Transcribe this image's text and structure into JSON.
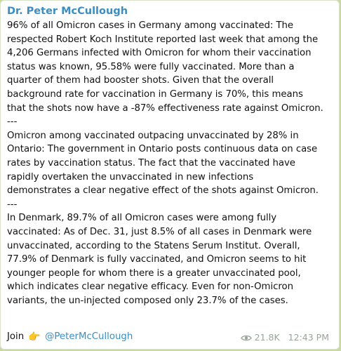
{
  "message": {
    "author": "Dr. Peter McCullough",
    "paragraphs": [
      "96% of all Omicron cases in Germany among vaccinated: The\nrespected Robert Koch Institute reported last week that among the\n4,206 Germans infected with Omicron for whom their vaccination\nstatus was known, 95.58% were fully vaccinated. More than a\nquarter of them had booster shots. Given that the overall\nbackground rate for vaccination in Germany is 70%, this means\nthat the shots now have a -87% effectiveness rate against Omicron.",
      "Omicron among vaccinated outpacing unvaccinated by 28% in\nOntario: The government in Ontario posts continuous data on case\nrates by vaccination status. The fact that the vaccinated have\nrapidly overtaken the unvaccinated in new infections\ndemonstrates a clear negative effect of the shots against Omicron.",
      "In Denmark, 89.7% of all Omicron cases were among fully\nvaccinated: As of Dec. 31, just 8.5% of all cases in Denmark were\nunvaccinated, according to the Statens Serum Institut. Overall,\n77.9% of Denmark is fully vaccinated, and Omicron seems to hit\nyounger people for whom there is a greater unvaccinated pool,\nwhich indicates clear negative efficacy. Even for non-Omicron\nvariants, the un-injected composed only 23.7% of the cases."
    ],
    "separator": "---",
    "join_text": "Join",
    "join_emoji": "👉",
    "mention": "@PeterMcCullough",
    "views": "21.8K",
    "time": "12:43 PM"
  },
  "colors": {
    "accent": "#3a8ec4",
    "background": "#c8d9a3",
    "meta": "#9aa59a"
  },
  "icons": {
    "views": "eye-icon",
    "join": "pointing-hand-emoji"
  }
}
